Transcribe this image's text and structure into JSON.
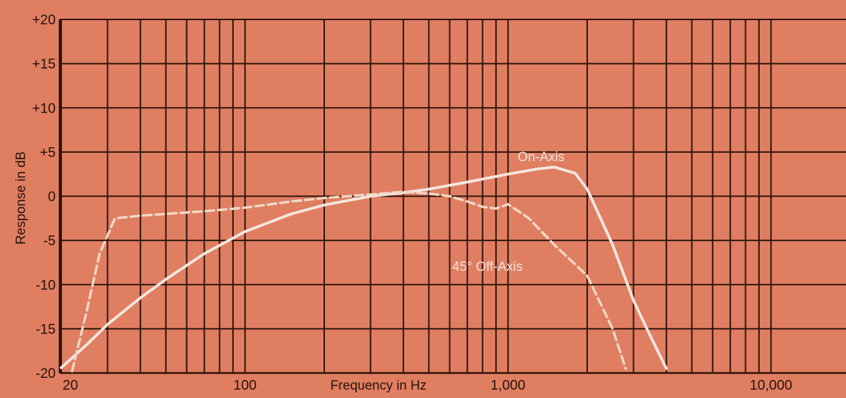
{
  "chart_data": {
    "type": "line",
    "xlabel": "Frequency in Hz",
    "ylabel": "Response in dB",
    "xscale": "log",
    "xlim": [
      18,
      13000
    ],
    "ylim": [
      -20,
      20
    ],
    "grid": true,
    "x_ticks": [
      {
        "value": 20,
        "label": "20"
      },
      {
        "value": 100,
        "label": "100"
      },
      {
        "value": 1000,
        "label": "1,000"
      },
      {
        "value": 10000,
        "label": "10,000"
      }
    ],
    "y_ticks": [
      {
        "value": 20,
        "label": "+20"
      },
      {
        "value": 15,
        "label": "+15"
      },
      {
        "value": 10,
        "label": "+10"
      },
      {
        "value": 5,
        "label": "+5"
      },
      {
        "value": 0,
        "label": "0"
      },
      {
        "value": -5,
        "label": "-5"
      },
      {
        "value": -10,
        "label": "-10"
      },
      {
        "value": -15,
        "label": "-15"
      },
      {
        "value": -20,
        "label": "-20"
      }
    ],
    "series": [
      {
        "name": "On-Axis",
        "style": "solid",
        "x": [
          20,
          25,
          30,
          40,
          50,
          70,
          100,
          150,
          200,
          300,
          400,
          500,
          700,
          1000,
          1300,
          1500,
          1800,
          2000,
          2500,
          3000,
          3500,
          4000
        ],
        "y": [
          -19.4,
          -16.8,
          -14.5,
          -11.5,
          -9.4,
          -6.5,
          -4.0,
          -2.0,
          -1.0,
          0.0,
          0.4,
          0.8,
          1.6,
          2.5,
          3.1,
          3.3,
          2.6,
          0.8,
          -5.5,
          -11.8,
          -16.0,
          -19.5
        ],
        "color": "#f6e6dc"
      },
      {
        "name": "45° Off-Axis",
        "style": "dashed",
        "x": [
          22,
          25,
          28,
          32,
          40,
          50,
          70,
          100,
          150,
          200,
          300,
          400,
          500,
          600,
          700,
          800,
          900,
          1000,
          1200,
          1500,
          2000,
          2500,
          2800
        ],
        "y": [
          -19.8,
          -13.0,
          -6.5,
          -2.5,
          -2.2,
          -2.0,
          -1.7,
          -1.3,
          -0.6,
          -0.2,
          0.2,
          0.5,
          0.3,
          0.0,
          -0.6,
          -1.2,
          -1.4,
          -0.9,
          -2.5,
          -5.5,
          -9.0,
          -15.0,
          -19.5
        ],
        "color": "#f2d8c6"
      }
    ],
    "annotations": [
      {
        "text": "On-Axis",
        "series": "On-Axis"
      },
      {
        "text": "45° Off-Axis",
        "series": "45° Off-Axis"
      }
    ]
  }
}
